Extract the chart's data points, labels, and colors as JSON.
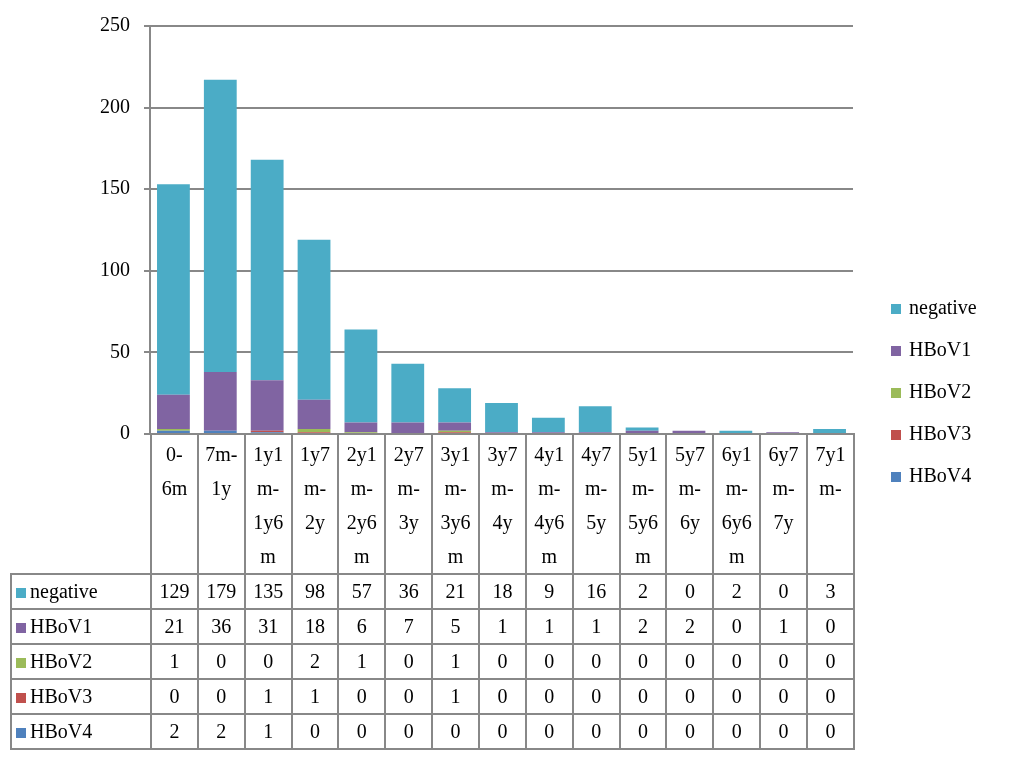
{
  "chart_data": {
    "type": "bar",
    "stacked": true,
    "categories": [
      "0-6m",
      "7m-1y",
      "1y1m-1y6m",
      "1y7m-2y",
      "2y1m-2y6m",
      "2y7m-3y",
      "3y1m-3y6m",
      "3y7m-4y",
      "4y1m-4y6m",
      "4y7m-5y",
      "5y1m-5y6m",
      "5y7m-6y",
      "6y1m-6y6m",
      "6y7m-7y",
      "7y1m-"
    ],
    "series": [
      {
        "name": "HBoV4",
        "color": "#4f81bd",
        "values": [
          2,
          2,
          1,
          0,
          0,
          0,
          0,
          0,
          0,
          0,
          0,
          0,
          0,
          0,
          0
        ]
      },
      {
        "name": "HBoV3",
        "color": "#c0504d",
        "values": [
          0,
          0,
          1,
          1,
          0,
          0,
          1,
          0,
          0,
          0,
          0,
          0,
          0,
          0,
          0
        ]
      },
      {
        "name": "HBoV2",
        "color": "#9bbb59",
        "values": [
          1,
          0,
          0,
          2,
          1,
          0,
          1,
          0,
          0,
          0,
          0,
          0,
          0,
          0,
          0
        ]
      },
      {
        "name": "HBoV1",
        "color": "#8064a2",
        "values": [
          21,
          36,
          31,
          18,
          6,
          7,
          5,
          1,
          1,
          1,
          2,
          2,
          0,
          1,
          0
        ]
      },
      {
        "name": "negative",
        "color": "#4bacc6",
        "values": [
          129,
          179,
          135,
          98,
          57,
          36,
          21,
          18,
          9,
          16,
          2,
          0,
          2,
          0,
          3
        ]
      }
    ],
    "ylim": [
      0,
      250
    ],
    "yticks": [
      0,
      50,
      100,
      150,
      200,
      250
    ],
    "grid": "y",
    "legend": "right",
    "data_labels": true
  }
}
